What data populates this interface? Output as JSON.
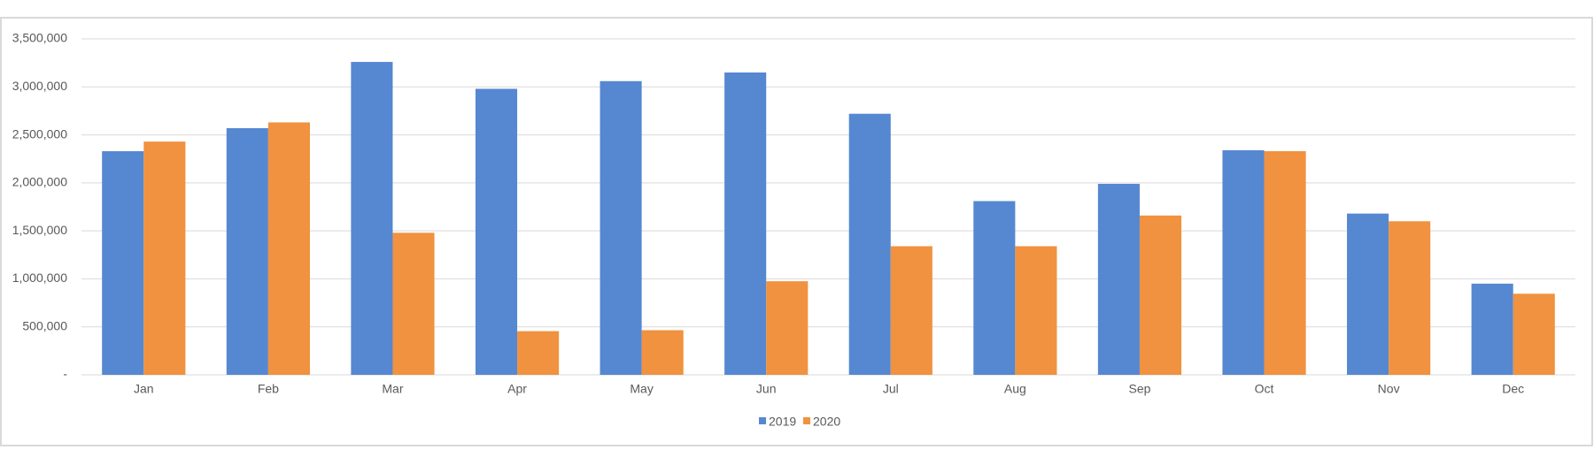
{
  "chart_data": {
    "type": "bar",
    "categories": [
      "Jan",
      "Feb",
      "Mar",
      "Apr",
      "May",
      "Jun",
      "Jul",
      "Aug",
      "Sep",
      "Oct",
      "Nov",
      "Dec"
    ],
    "series": [
      {
        "name": "2019",
        "color": "#5687d1",
        "values": [
          2330000,
          2570000,
          3260000,
          2980000,
          3060000,
          3150000,
          2720000,
          1810000,
          1990000,
          2340000,
          1680000,
          950000
        ]
      },
      {
        "name": "2020",
        "color": "#f0923f",
        "values": [
          2430000,
          2630000,
          1480000,
          455000,
          465000,
          975000,
          1340000,
          1340000,
          1660000,
          2330000,
          1600000,
          845000
        ]
      }
    ],
    "ylim": [
      0,
      3500000
    ],
    "yticks": [
      {
        "value": 0,
        "label": "-"
      },
      {
        "value": 500000,
        "label": "500,000"
      },
      {
        "value": 1000000,
        "label": "1,000,000"
      },
      {
        "value": 1500000,
        "label": "1,500,000"
      },
      {
        "value": 2000000,
        "label": "2,000,000"
      },
      {
        "value": 2500000,
        "label": "2,500,000"
      },
      {
        "value": 3000000,
        "label": "3,000,000"
      },
      {
        "value": 3500000,
        "label": "3,500,000"
      }
    ],
    "grid": true,
    "legend": "bottom"
  }
}
